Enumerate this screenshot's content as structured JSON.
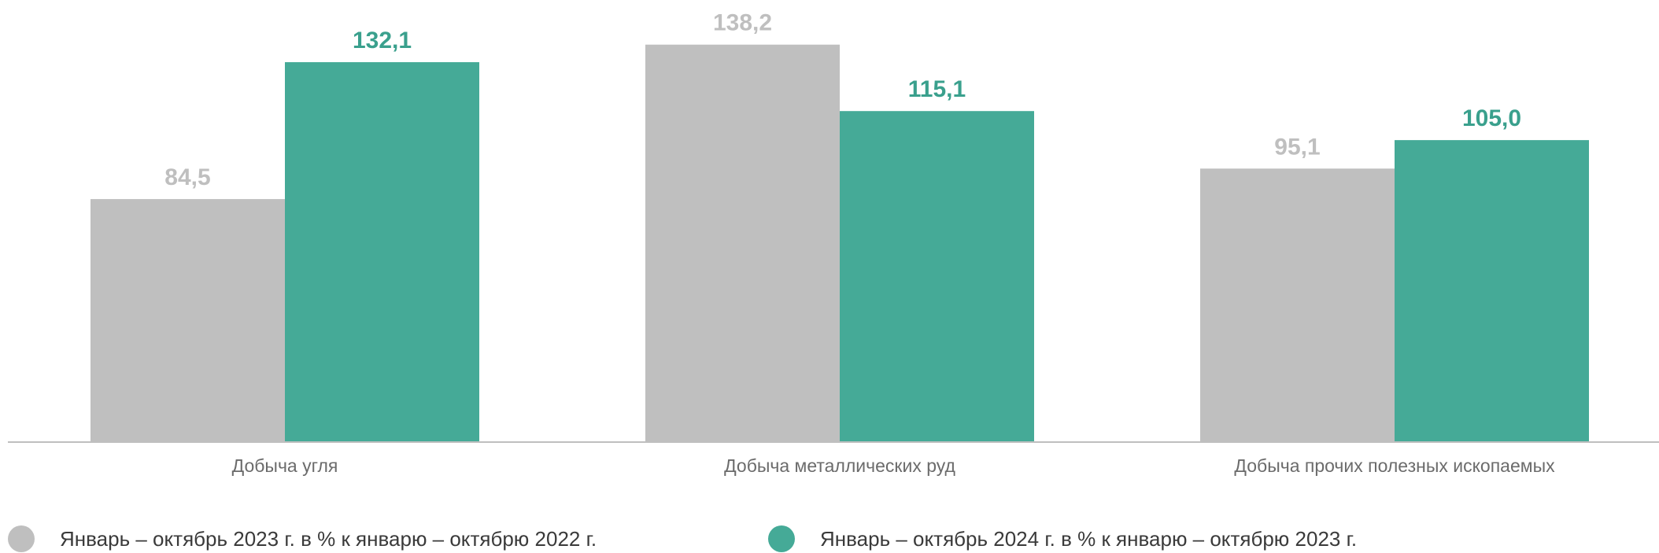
{
  "chart_data": {
    "type": "bar",
    "categories": [
      "Добыча угля",
      "Добыча металлических руд",
      "Добыча прочих полезных ископаемых"
    ],
    "series": [
      {
        "name": "Январь – октябрь 2023 г. в % к январю – октябрю 2022 г.",
        "values": [
          84.5,
          138.2,
          95.1
        ],
        "labels": [
          "84,5",
          "138,2",
          "95,1"
        ],
        "color": "#bfbfbf",
        "label_color": "#bfbfbf"
      },
      {
        "name": "Январь – октябрь 2024 г. в % к январю – октябрю 2023 г.",
        "values": [
          132.1,
          115.1,
          105.0
        ],
        "labels": [
          "132,1",
          "115,1",
          "105,0"
        ],
        "color": "#45aa97",
        "label_color": "#3aa08d"
      }
    ],
    "ylim": [
      0,
      140
    ],
    "grid": false,
    "legend_position": "bottom",
    "axis_color": "#bfbfbf",
    "category_label_color": "#6b6b6b"
  }
}
